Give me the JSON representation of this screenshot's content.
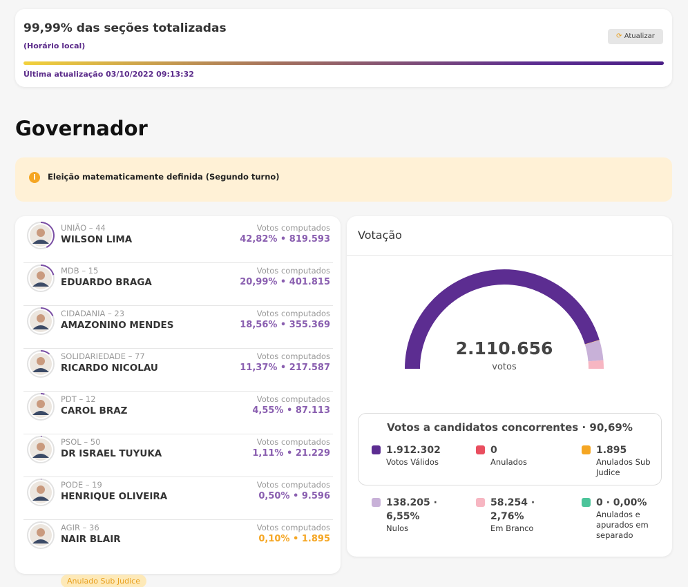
{
  "header": {
    "title": "99,99% das seções totalizadas",
    "subtitle": "(Horário local)",
    "button": "Atualizar",
    "updated": "Última atualização 03/10/2022 09:13:32"
  },
  "section_title": "Governador",
  "alert": "Eleição matematicamente definida (Segundo turno)",
  "candidates": [
    {
      "party": "UNIÃO – 44",
      "name": "WILSON LIMA",
      "votes_caption": "Votos computados",
      "percent": 42.82,
      "percent_label": "42,82%",
      "votes": "819.593",
      "color": "#8a5fb0"
    },
    {
      "party": "MDB – 15",
      "name": "EDUARDO BRAGA",
      "votes_caption": "Votos computados",
      "percent": 20.99,
      "percent_label": "20,99%",
      "votes": "401.815",
      "color": "#8a5fb0"
    },
    {
      "party": "CIDADANIA – 23",
      "name": "AMAZONINO MENDES",
      "votes_caption": "Votos computados",
      "percent": 18.56,
      "percent_label": "18,56%",
      "votes": "355.369",
      "color": "#8a5fb0"
    },
    {
      "party": "SOLIDARIEDADE – 77",
      "name": "RICARDO NICOLAU",
      "votes_caption": "Votos computados",
      "percent": 11.37,
      "percent_label": "11,37%",
      "votes": "217.587",
      "color": "#8a5fb0"
    },
    {
      "party": "PDT – 12",
      "name": "CAROL BRAZ",
      "votes_caption": "Votos computados",
      "percent": 4.55,
      "percent_label": "4,55%",
      "votes": "87.113",
      "color": "#8a5fb0"
    },
    {
      "party": "PSOL – 50",
      "name": "DR ISRAEL TUYUKA",
      "votes_caption": "Votos computados",
      "percent": 1.11,
      "percent_label": "1,11%",
      "votes": "21.229",
      "color": "#8a5fb0"
    },
    {
      "party": "PODE – 19",
      "name": "HENRIQUE OLIVEIRA",
      "votes_caption": "Votos computados",
      "percent": 0.5,
      "percent_label": "0,50%",
      "votes": "9.596",
      "color": "#8a5fb0"
    },
    {
      "party": "AGIR – 36",
      "name": "NAIR BLAIR",
      "votes_caption": "Votos computados",
      "percent": 0.1,
      "percent_label": "0,10%",
      "votes": "1.895",
      "color": "#f5a623",
      "badge": "Anulado Sub Judice"
    }
  ],
  "votacao": {
    "title": "Votação",
    "total": "2.110.656",
    "total_unit": "votos",
    "box_title": "Votos a candidatos concorrentes · 90,69%",
    "box_items": [
      {
        "value": 1912302,
        "value_label": "1.912.302",
        "label": "Votos Válidos",
        "color": "#5c2d91"
      },
      {
        "value": 0,
        "value_label": "0",
        "label": "Anulados",
        "color": "#e94e5f"
      },
      {
        "value": 1895,
        "value_label": "1.895",
        "label": "Anulados Sub Judice",
        "color": "#f5a623"
      }
    ],
    "other_items": [
      {
        "value": 138205,
        "value_label": "138.205 · 6,55%",
        "label": "Nulos",
        "color": "#c8b1d8"
      },
      {
        "value": 58254,
        "value_label": "58.254 · 2,76%",
        "label": "Em Branco",
        "color": "#f7b6c2"
      },
      {
        "value": 0,
        "value_label": "0 · 0,00%",
        "label": "Anulados e apurados em separado",
        "color": "#4cc49a"
      }
    ]
  }
}
